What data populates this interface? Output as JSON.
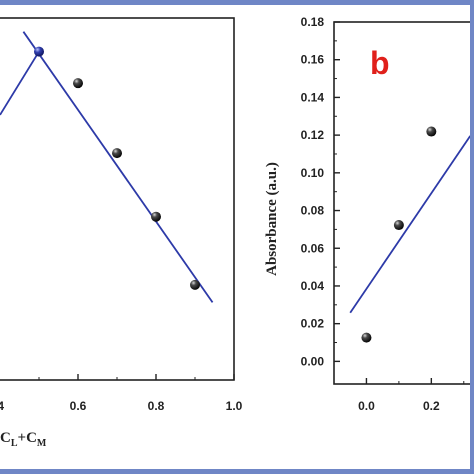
{
  "chart_data": [
    {
      "type": "scatter",
      "panel_label": "",
      "xlim": [
        0.4,
        1.0
      ],
      "ylim": [
        0.0,
        0.18
      ],
      "x_ticks": [
        "0.6",
        "0.8",
        "1.0"
      ],
      "x_tick_partial": "4",
      "xlabel": "C",
      "xlabel_sub1": "L",
      "xlabel_mid": "+C",
      "xlabel_sub2": "M",
      "points": [
        {
          "x": 0.5,
          "y": 0.1633
        },
        {
          "x": 0.6,
          "y": 0.1476
        },
        {
          "x": 0.7,
          "y": 0.1128
        },
        {
          "x": 0.8,
          "y": 0.0812
        },
        {
          "x": 0.9,
          "y": 0.0473
        }
      ],
      "fit_lines": [
        {
          "x1": 0.4,
          "y1": 0.1318,
          "x2": 0.5,
          "y2": 0.1633
        },
        {
          "x1": 0.46,
          "y1": 0.1732,
          "x2": 0.945,
          "y2": 0.0386
        }
      ],
      "intersection": {
        "x": 0.5,
        "y": 0.1633
      },
      "colors": {
        "line": "#2d3aa8",
        "marker": "#111111",
        "marker_highlight": "#2d3aa8"
      }
    },
    {
      "type": "scatter",
      "panel_label": "b",
      "ylabel": "Absorbance (a.u.)",
      "ylim": [
        0.0,
        0.18
      ],
      "y_ticks": [
        "0.00",
        "0.02",
        "0.04",
        "0.06",
        "0.08",
        "0.10",
        "0.12",
        "0.14",
        "0.16",
        "0.18"
      ],
      "x_ticks": [
        "0.0",
        "0.2"
      ],
      "points": [
        {
          "x": 0.0,
          "y": 0.0126
        },
        {
          "x": 0.1,
          "y": 0.0723
        },
        {
          "x": 0.2,
          "y": 0.1219
        }
      ],
      "fit_lines": [
        {
          "x1": -0.05,
          "y1": 0.0258,
          "x2": 0.32,
          "y2": 0.1196
        }
      ],
      "colors": {
        "line": "#2d3aa8",
        "marker": "#111111",
        "panel_label": "#e0201b"
      }
    }
  ]
}
